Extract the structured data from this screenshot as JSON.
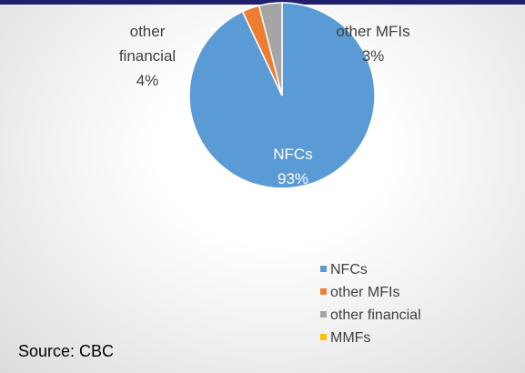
{
  "chart_data": {
    "type": "pie",
    "categories": [
      "NFCs",
      "other MFIs",
      "other financial",
      "MMFs"
    ],
    "values": [
      93,
      3,
      4,
      0
    ],
    "value_labels": [
      "93%",
      "3%",
      "4%",
      null
    ],
    "colors": [
      "#5b9bd5",
      "#ed7d31",
      "#a5a5a5",
      "#ffc000"
    ],
    "legend": "bottom-right",
    "source": "Source: CBC"
  }
}
